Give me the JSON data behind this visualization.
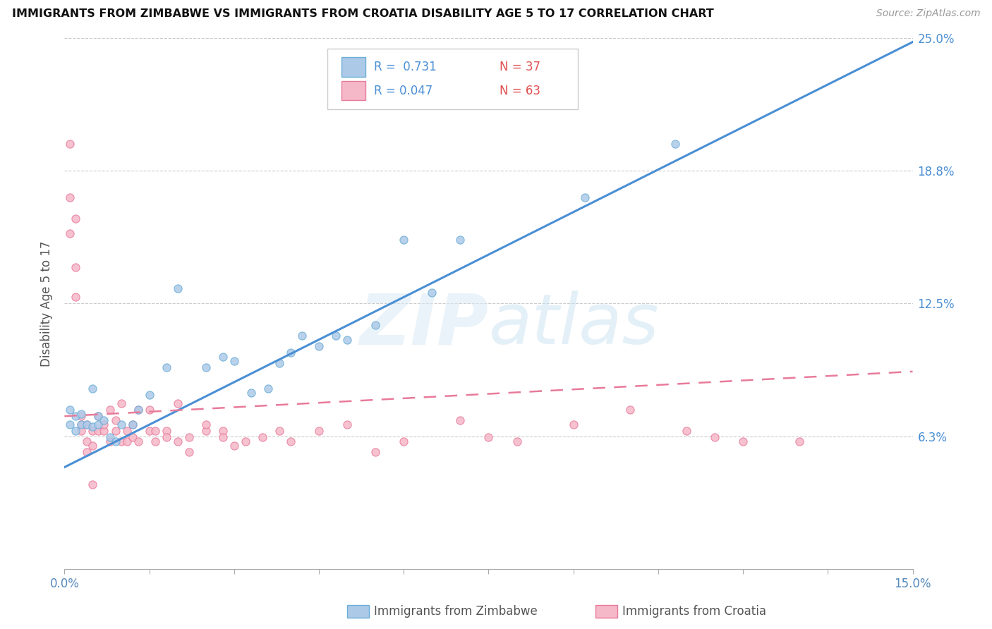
{
  "title": "IMMIGRANTS FROM ZIMBABWE VS IMMIGRANTS FROM CROATIA DISABILITY AGE 5 TO 17 CORRELATION CHART",
  "source": "Source: ZipAtlas.com",
  "ylabel": "Disability Age 5 to 17",
  "xlim": [
    0.0,
    0.15
  ],
  "ylim": [
    0.0,
    0.25
  ],
  "xticks": [
    0.0,
    0.015,
    0.03,
    0.045,
    0.06,
    0.075,
    0.09,
    0.105,
    0.12,
    0.135,
    0.15
  ],
  "xticklabels_show": {
    "0.0": "0.0%",
    "0.15": "15.0%"
  },
  "yticks": [
    0.0,
    0.0625,
    0.125,
    0.1875,
    0.25
  ],
  "yticklabels_right": [
    "",
    "6.3%",
    "12.5%",
    "18.8%",
    "25.0%"
  ],
  "legend_r1": "R =  0.731",
  "legend_n1": "N = 37",
  "legend_r2": "R = 0.047",
  "legend_n2": "N = 63",
  "color_zimbabwe_fill": "#adc9e8",
  "color_zimbabwe_edge": "#6aaed6",
  "color_croatia_fill": "#f5b8c8",
  "color_croatia_edge": "#e8799a",
  "color_trend_zimbabwe": "#4a8fd4",
  "color_trend_croatia": "#e87a9a",
  "color_r_text": "#4a8fd4",
  "color_n_text": "#e05050",
  "watermark_zip": "ZIP",
  "watermark_atlas": "atlas",
  "label_zimbabwe": "Immigrants from Zimbabwe",
  "label_croatia": "Immigrants from Croatia",
  "zimbabwe_x": [
    0.001,
    0.001,
    0.002,
    0.002,
    0.003,
    0.003,
    0.004,
    0.005,
    0.005,
    0.006,
    0.006,
    0.007,
    0.008,
    0.009,
    0.01,
    0.012,
    0.013,
    0.015,
    0.018,
    0.02,
    0.025,
    0.028,
    0.03,
    0.033,
    0.036,
    0.038,
    0.04,
    0.042,
    0.045,
    0.048,
    0.05,
    0.055,
    0.06,
    0.065,
    0.07,
    0.092,
    0.108
  ],
  "zimbabwe_y": [
    0.068,
    0.075,
    0.065,
    0.072,
    0.068,
    0.073,
    0.068,
    0.067,
    0.085,
    0.068,
    0.072,
    0.07,
    0.062,
    0.06,
    0.068,
    0.068,
    0.075,
    0.082,
    0.095,
    0.132,
    0.095,
    0.1,
    0.098,
    0.083,
    0.085,
    0.097,
    0.102,
    0.11,
    0.105,
    0.11,
    0.108,
    0.115,
    0.155,
    0.13,
    0.155,
    0.175,
    0.2
  ],
  "croatia_x": [
    0.001,
    0.001,
    0.001,
    0.002,
    0.002,
    0.002,
    0.003,
    0.003,
    0.003,
    0.004,
    0.004,
    0.004,
    0.005,
    0.005,
    0.005,
    0.006,
    0.006,
    0.007,
    0.007,
    0.008,
    0.008,
    0.009,
    0.009,
    0.01,
    0.01,
    0.011,
    0.011,
    0.012,
    0.012,
    0.013,
    0.013,
    0.015,
    0.015,
    0.016,
    0.016,
    0.018,
    0.018,
    0.02,
    0.02,
    0.022,
    0.022,
    0.025,
    0.025,
    0.028,
    0.028,
    0.03,
    0.032,
    0.035,
    0.038,
    0.04,
    0.045,
    0.05,
    0.055,
    0.06,
    0.07,
    0.075,
    0.08,
    0.09,
    0.1,
    0.11,
    0.115,
    0.12,
    0.13
  ],
  "croatia_y": [
    0.2,
    0.175,
    0.158,
    0.165,
    0.142,
    0.128,
    0.068,
    0.065,
    0.072,
    0.055,
    0.06,
    0.068,
    0.058,
    0.065,
    0.04,
    0.065,
    0.072,
    0.065,
    0.068,
    0.075,
    0.06,
    0.07,
    0.065,
    0.06,
    0.078,
    0.065,
    0.06,
    0.068,
    0.062,
    0.06,
    0.075,
    0.075,
    0.065,
    0.065,
    0.06,
    0.065,
    0.062,
    0.06,
    0.078,
    0.055,
    0.062,
    0.065,
    0.068,
    0.065,
    0.062,
    0.058,
    0.06,
    0.062,
    0.065,
    0.06,
    0.065,
    0.068,
    0.055,
    0.06,
    0.07,
    0.062,
    0.06,
    0.068,
    0.075,
    0.065,
    0.062,
    0.06,
    0.06
  ],
  "zim_trend_x0": 0.0,
  "zim_trend_y0": 0.048,
  "zim_trend_x1": 0.15,
  "zim_trend_y1": 0.248,
  "cro_trend_x0": 0.0,
  "cro_trend_y0": 0.072,
  "cro_trend_x1": 0.15,
  "cro_trend_y1": 0.093
}
